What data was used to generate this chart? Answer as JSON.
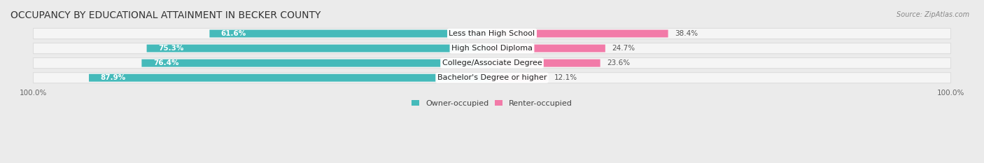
{
  "title": "OCCUPANCY BY EDUCATIONAL ATTAINMENT IN BECKER COUNTY",
  "source": "Source: ZipAtlas.com",
  "categories": [
    "Less than High School",
    "High School Diploma",
    "College/Associate Degree",
    "Bachelor's Degree or higher"
  ],
  "owner_pct": [
    61.6,
    75.3,
    76.4,
    87.9
  ],
  "renter_pct": [
    38.4,
    24.7,
    23.6,
    12.1
  ],
  "owner_color": "#45BABA",
  "renter_color": "#F27AA8",
  "bg_color": "#EBEBEB",
  "row_bg_color": "#F5F5F5",
  "title_fontsize": 10,
  "label_fontsize": 8,
  "pct_fontsize": 7.5,
  "legend_fontsize": 8,
  "axis_label_fontsize": 7.5
}
